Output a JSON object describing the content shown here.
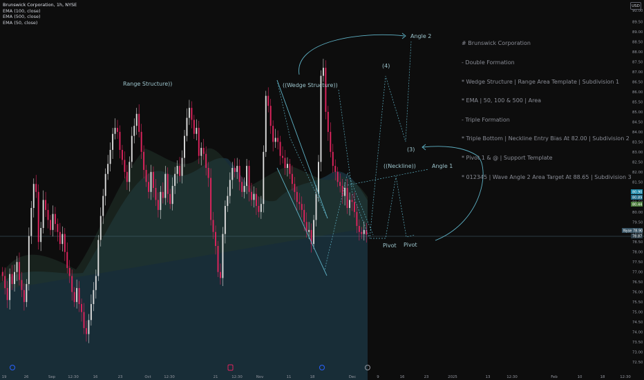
{
  "legend": {
    "title": "Brunswick Corporation, 1h, NYSE",
    "ema1": "EMA (100, close)",
    "ema2": "EMA (500, close)",
    "ema3": "EMA (50, close)"
  },
  "currency": "USD",
  "notes": [
    "# Brunswick Corporation",
    "- Double Formation",
    "* Wedge Structure | Range Area Template | Subdivision 1",
    "* EMA | 50, 100 & 500 | Area",
    "- Triple Formation",
    "* Triple Bottom | Neckline Entry Bias At 82.00 | Subdivision 2",
    "* Pivot 1 & @ | Support Template",
    "* 012345 | Wave Angle 2 Area Target At 88.65 | Subdivision 3"
  ],
  "annotations": {
    "range": "Range Structure))",
    "wedge": "((Wedge Structure))",
    "neckline": "((Neckline))",
    "angle1": "Angle 1",
    "angle2": "Angle 2",
    "wave4": "(4)",
    "wave3": "(3)",
    "pivot1": "Pivot",
    "pivot2": "Pivot"
  },
  "price_tags": {
    "nyse": "Nyse",
    "last": "78.90",
    "prev": "78.87",
    "ema_a": "80.90",
    "ema_b": "80.89",
    "ema_c": "80.44"
  },
  "colors": {
    "background": "#0d0d0d",
    "up": "#dcdcdc",
    "down": "#e0245e",
    "ema_area_a": "#1e3a4a",
    "ema_area_b": "#2a3a24",
    "annotation": "#5fb3c7"
  },
  "chart_data": {
    "type": "candlestick",
    "symbol": "Brunswick Corporation",
    "interval": "1h",
    "exchange": "NYSE",
    "yaxis": {
      "ticks": [
        72.5,
        73.0,
        73.5,
        74.0,
        74.5,
        75.0,
        75.5,
        76.0,
        76.5,
        77.0,
        77.5,
        78.0,
        78.5,
        79.0,
        79.5,
        80.0,
        80.5,
        81.0,
        81.5,
        82.0,
        82.5,
        83.0,
        83.5,
        84.0,
        84.5,
        85.0,
        85.5,
        86.0,
        86.5,
        87.0,
        87.5,
        88.0,
        88.5,
        89.0,
        89.5
      ],
      "top_label": "90.00",
      "range": [
        72.2,
        90.2
      ]
    },
    "xaxis_ticks": [
      "19",
      "26",
      "Sep",
      "12:30",
      "16",
      "23",
      "Oct",
      "12:30",
      "21",
      "12:30",
      "Nov",
      "11",
      "18",
      "Dec",
      "9",
      "16",
      "23",
      "2025",
      "13",
      "12:30",
      "Feb",
      "10",
      "18",
      "12:30"
    ],
    "closes": [
      76.8,
      76.2,
      75.6,
      76.9,
      76.4,
      77.0,
      77.5,
      76.6,
      76.1,
      75.5,
      76.4,
      78.8,
      80.2,
      81.4,
      81.0,
      78.5,
      79.2,
      80.6,
      80.1,
      79.6,
      79.1,
      79.9,
      79.4,
      79.0,
      78.4,
      78.9,
      78.0,
      77.2,
      76.8,
      76.0,
      75.5,
      76.2,
      75.4,
      75.0,
      74.2,
      73.9,
      74.6,
      75.4,
      76.1,
      76.8,
      78.6,
      79.8,
      80.8,
      81.9,
      82.4,
      83.1,
      83.9,
      84.2,
      84.0,
      83.1,
      82.6,
      82.0,
      81.5,
      82.5,
      83.8,
      84.3,
      84.9,
      84.0,
      83.0,
      82.1,
      81.5,
      81.0,
      82.0,
      81.2,
      80.6,
      80.1,
      81.0,
      80.7,
      81.9,
      80.9,
      80.4,
      81.3,
      81.9,
      82.3,
      81.8,
      82.7,
      83.8,
      84.7,
      85.2,
      84.6,
      83.9,
      84.2,
      82.8,
      83.2,
      82.9,
      82.2,
      81.7,
      79.6,
      79.0,
      78.3,
      77.0,
      76.7,
      78.9,
      80.3,
      80.8,
      81.6,
      82.2,
      82.0,
      82.3,
      81.5,
      81.0,
      81.3,
      82.3,
      81.0,
      80.6,
      80.9,
      80.3,
      80.0,
      80.4,
      83.0,
      85.8,
      85.3,
      84.3,
      83.5,
      83.7,
      83.5,
      82.8,
      82.7,
      82.2,
      82.4,
      81.9,
      81.4,
      81.0,
      80.5,
      80.4,
      80.1,
      79.5,
      79.0,
      79.1,
      78.4,
      79.6,
      80.9,
      82.5,
      86.8,
      87.2,
      85.0,
      84.0,
      83.0,
      82.3,
      82.0,
      81.5,
      81.3,
      80.8,
      81.2,
      80.2,
      80.6,
      80.5,
      80.0,
      79.3,
      79.0,
      78.9,
      79.1,
      78.87
    ]
  }
}
